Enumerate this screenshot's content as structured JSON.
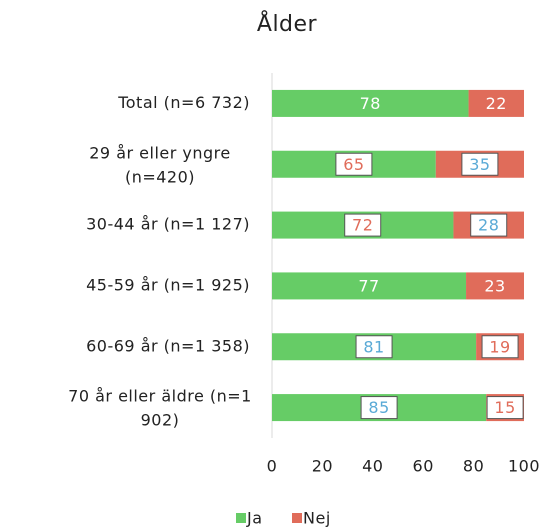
{
  "chart_data": {
    "type": "stacked_bar_horizontal",
    "title": "Ålder",
    "categories": [
      "Total (n=6 732)",
      "29 år eller yngre (n=420)",
      "30-44 år (n=1 127)",
      "45-59 år (n=1 925)",
      "60-69 år (n=1 358)",
      "70 år eller äldre (n=1 902)"
    ],
    "series": [
      {
        "name": "Ja",
        "color": "#66cc66",
        "values": [
          78,
          65,
          72,
          77,
          81,
          85
        ]
      },
      {
        "name": "Nej",
        "color": "#e06c5a",
        "values": [
          22,
          35,
          28,
          23,
          19,
          15
        ]
      }
    ],
    "xlim": [
      0,
      100
    ],
    "xticks": [
      0,
      20,
      40,
      60,
      80,
      100
    ],
    "legend": "bottom"
  }
}
